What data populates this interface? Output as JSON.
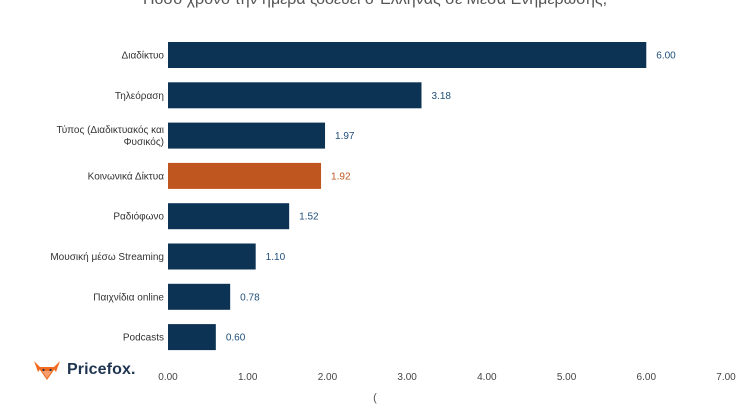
{
  "chart_data": {
    "type": "bar",
    "orientation": "horizontal",
    "title": "Πόσο χρόνο την ημέρα ζοδεύει ο Έλληνας σε Μέσα Ενημέρωσης;",
    "xlabel": "(",
    "categories": [
      "Διαδίκτυο",
      "Τηλεόραση",
      "Τύπος (Διαδικτυακός και Φυσικός)",
      "Κοινωνικά Δίκτυα",
      "Ραδιόφωνο",
      "Μουσική μέσω Streaming",
      "Παιχνίδια online",
      "Podcasts"
    ],
    "values": [
      6.0,
      3.18,
      1.97,
      1.92,
      1.52,
      1.1,
      0.78,
      0.6
    ],
    "value_labels": [
      "6.00",
      "3.18",
      "1.97",
      "1.92",
      "1.52",
      "1.10",
      "0.78",
      "0.60"
    ],
    "highlight_index": 3,
    "xlim": [
      0,
      7
    ],
    "xticks": [
      "0.00",
      "1.00",
      "2.00",
      "3.00",
      "4.00",
      "5.00",
      "6.00",
      "7.00"
    ],
    "grid": false,
    "colors": {
      "bar": "#0c3354",
      "highlight": "#c0561f",
      "label": "#1f4e79",
      "highlight_label": "#c0561f"
    }
  },
  "brand": {
    "name": "Pricefox.",
    "logo_icon": "fox-icon",
    "logo_color": "#f26b21"
  }
}
